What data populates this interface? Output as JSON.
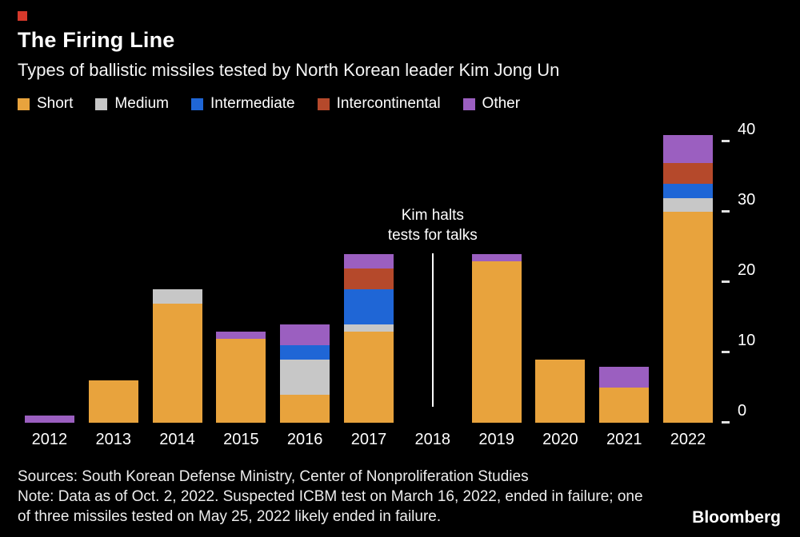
{
  "header": {
    "accent_color": "#d6392b",
    "title": "The Firing Line",
    "subtitle": "Types of ballistic missiles tested by North Korean leader Kim Jong Un"
  },
  "chart_data": {
    "type": "bar",
    "stacked": true,
    "title": "The Firing Line",
    "subtitle": "Types of ballistic missiles tested by North Korean leader Kim Jong Un",
    "categories": [
      "2012",
      "2013",
      "2014",
      "2015",
      "2016",
      "2017",
      "2018",
      "2019",
      "2020",
      "2021",
      "2022"
    ],
    "series": [
      {
        "name": "Short",
        "color": "#e8a33d",
        "values": [
          0,
          6,
          17,
          12,
          4,
          13,
          0,
          23,
          9,
          5,
          30
        ]
      },
      {
        "name": "Medium",
        "color": "#c7c7c7",
        "values": [
          0,
          0,
          2,
          0,
          5,
          1,
          0,
          0,
          0,
          0,
          2
        ]
      },
      {
        "name": "Intermediate",
        "color": "#1f66d6",
        "values": [
          0,
          0,
          0,
          0,
          2,
          5,
          0,
          0,
          0,
          0,
          2
        ]
      },
      {
        "name": "Intercontinental",
        "color": "#b5492b",
        "values": [
          0,
          0,
          0,
          0,
          0,
          3,
          0,
          0,
          0,
          0,
          3
        ]
      },
      {
        "name": "Other",
        "color": "#9b5fc0",
        "values": [
          1,
          0,
          0,
          1,
          3,
          2,
          0,
          1,
          0,
          3,
          4
        ]
      }
    ],
    "ylim": [
      0,
      43
    ],
    "yticks": [
      0,
      10,
      20,
      30,
      40
    ],
    "grid": false,
    "legend_position": "top",
    "annotation": {
      "text_lines": [
        "Kim halts",
        "tests for talks"
      ],
      "category": "2018"
    }
  },
  "footer": {
    "sources": "Sources: South Korean Defense Ministry, Center of Nonproliferation Studies",
    "note": "Note: Data as of Oct. 2, 2022. Suspected ICBM test on March 16, 2022, ended in failure; one of three missiles tested on May 25, 2022 likely ended in failure.",
    "brand": "Bloomberg"
  }
}
